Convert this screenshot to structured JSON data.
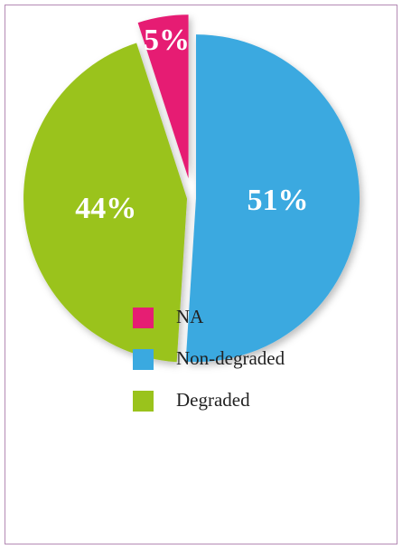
{
  "chart_data": {
    "type": "pie",
    "categories": [
      "NA",
      "Non-degraded",
      "Degraded"
    ],
    "values": [
      5,
      51,
      44
    ],
    "value_labels": [
      "5%",
      "51%",
      "44%"
    ],
    "colors": [
      "#e61e73",
      "#3aa9e0",
      "#9ac31c"
    ],
    "legend": "bottom"
  }
}
